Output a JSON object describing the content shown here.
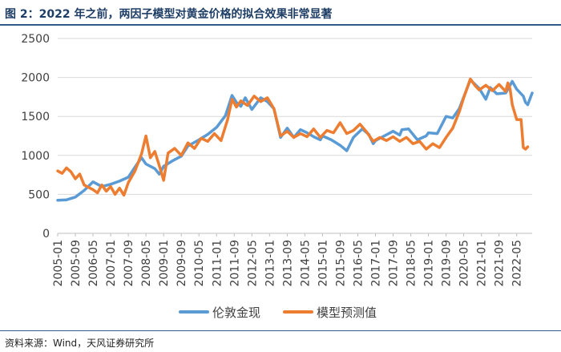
{
  "title": "图 2：2022 年之前，两因子模型对黄金价格的拟合效果非常显著",
  "source": "资料来源：Wind，天风证券研究所",
  "chart_data": {
    "type": "line",
    "title": "",
    "xlabel": "",
    "ylabel": "",
    "ylim": [
      0,
      2500
    ],
    "yticks": [
      0,
      500,
      1000,
      1500,
      2000,
      2500
    ],
    "x_tick_labels": [
      "2005-01",
      "2005-09",
      "2006-05",
      "2007-01",
      "2007-09",
      "2008-05",
      "2009-01",
      "2009-09",
      "2010-05",
      "2011-01",
      "2011-09",
      "2012-05",
      "2013-01",
      "2013-09",
      "2014-05",
      "2015-01",
      "2015-09",
      "2016-05",
      "2017-01",
      "2017-09",
      "2018-05",
      "2019-01",
      "2019-09",
      "2020-05",
      "2021-01",
      "2021-09",
      "2022-05"
    ],
    "grid": "horizontal",
    "legend_position": "bottom",
    "series": [
      {
        "name": "伦敦金现",
        "color": "#5b9bd5",
        "points": [
          [
            "2005-01",
            425
          ],
          [
            "2005-05",
            430
          ],
          [
            "2005-09",
            465
          ],
          [
            "2006-01",
            550
          ],
          [
            "2006-05",
            660
          ],
          [
            "2006-09",
            600
          ],
          [
            "2007-01",
            630
          ],
          [
            "2007-05",
            670
          ],
          [
            "2007-09",
            720
          ],
          [
            "2008-01",
            890
          ],
          [
            "2008-03",
            970
          ],
          [
            "2008-05",
            890
          ],
          [
            "2008-09",
            830
          ],
          [
            "2008-11",
            760
          ],
          [
            "2009-01",
            860
          ],
          [
            "2009-05",
            930
          ],
          [
            "2009-09",
            990
          ],
          [
            "2009-12",
            1120
          ],
          [
            "2010-05",
            1200
          ],
          [
            "2010-09",
            1270
          ],
          [
            "2011-01",
            1360
          ],
          [
            "2011-05",
            1510
          ],
          [
            "2011-08",
            1770
          ],
          [
            "2011-10",
            1680
          ],
          [
            "2011-12",
            1630
          ],
          [
            "2012-02",
            1740
          ],
          [
            "2012-05",
            1590
          ],
          [
            "2012-09",
            1740
          ],
          [
            "2012-12",
            1690
          ],
          [
            "2013-03",
            1600
          ],
          [
            "2013-06",
            1230
          ],
          [
            "2013-09",
            1350
          ],
          [
            "2013-12",
            1230
          ],
          [
            "2014-03",
            1330
          ],
          [
            "2014-06",
            1290
          ],
          [
            "2014-09",
            1240
          ],
          [
            "2014-12",
            1200
          ],
          [
            "2015-01",
            1250
          ],
          [
            "2015-05",
            1200
          ],
          [
            "2015-09",
            1130
          ],
          [
            "2015-12",
            1060
          ],
          [
            "2016-03",
            1230
          ],
          [
            "2016-07",
            1340
          ],
          [
            "2016-10",
            1270
          ],
          [
            "2016-12",
            1150
          ],
          [
            "2017-01",
            1190
          ],
          [
            "2017-05",
            1250
          ],
          [
            "2017-09",
            1310
          ],
          [
            "2017-12",
            1260
          ],
          [
            "2018-01",
            1330
          ],
          [
            "2018-04",
            1340
          ],
          [
            "2018-08",
            1200
          ],
          [
            "2018-12",
            1250
          ],
          [
            "2019-01",
            1290
          ],
          [
            "2019-05",
            1280
          ],
          [
            "2019-09",
            1500
          ],
          [
            "2019-12",
            1480
          ],
          [
            "2020-03",
            1600
          ],
          [
            "2020-08",
            1970
          ],
          [
            "2020-12",
            1860
          ],
          [
            "2021-03",
            1720
          ],
          [
            "2021-05",
            1870
          ],
          [
            "2021-08",
            1790
          ],
          [
            "2021-12",
            1800
          ],
          [
            "2022-03",
            1950
          ],
          [
            "2022-05",
            1850
          ],
          [
            "2022-08",
            1760
          ],
          [
            "2022-09",
            1680
          ],
          [
            "2022-10",
            1650
          ],
          [
            "2022-12",
            1800
          ]
        ]
      },
      {
        "name": "模型预测值",
        "color": "#ed7d31",
        "points": [
          [
            "2005-01",
            800
          ],
          [
            "2005-03",
            770
          ],
          [
            "2005-05",
            840
          ],
          [
            "2005-07",
            790
          ],
          [
            "2005-09",
            700
          ],
          [
            "2005-11",
            760
          ],
          [
            "2006-01",
            620
          ],
          [
            "2006-03",
            590
          ],
          [
            "2006-05",
            560
          ],
          [
            "2006-07",
            520
          ],
          [
            "2006-09",
            620
          ],
          [
            "2006-11",
            540
          ],
          [
            "2007-01",
            600
          ],
          [
            "2007-03",
            500
          ],
          [
            "2007-05",
            580
          ],
          [
            "2007-07",
            490
          ],
          [
            "2007-09",
            650
          ],
          [
            "2007-12",
            800
          ],
          [
            "2008-03",
            1020
          ],
          [
            "2008-05",
            1250
          ],
          [
            "2008-07",
            970
          ],
          [
            "2008-09",
            1050
          ],
          [
            "2008-11",
            870
          ],
          [
            "2009-01",
            680
          ],
          [
            "2009-03",
            1030
          ],
          [
            "2009-06",
            1090
          ],
          [
            "2009-09",
            1000
          ],
          [
            "2009-12",
            1160
          ],
          [
            "2010-03",
            1090
          ],
          [
            "2010-06",
            1220
          ],
          [
            "2010-09",
            1180
          ],
          [
            "2010-12",
            1280
          ],
          [
            "2011-03",
            1190
          ],
          [
            "2011-06",
            1460
          ],
          [
            "2011-08",
            1720
          ],
          [
            "2011-10",
            1620
          ],
          [
            "2011-12",
            1700
          ],
          [
            "2012-03",
            1640
          ],
          [
            "2012-06",
            1760
          ],
          [
            "2012-09",
            1690
          ],
          [
            "2012-12",
            1740
          ],
          [
            "2013-03",
            1600
          ],
          [
            "2013-06",
            1250
          ],
          [
            "2013-09",
            1310
          ],
          [
            "2013-12",
            1230
          ],
          [
            "2014-03",
            1280
          ],
          [
            "2014-06",
            1240
          ],
          [
            "2014-09",
            1340
          ],
          [
            "2014-12",
            1230
          ],
          [
            "2015-03",
            1320
          ],
          [
            "2015-06",
            1290
          ],
          [
            "2015-09",
            1420
          ],
          [
            "2015-12",
            1280
          ],
          [
            "2016-03",
            1320
          ],
          [
            "2016-06",
            1400
          ],
          [
            "2016-09",
            1300
          ],
          [
            "2016-12",
            1180
          ],
          [
            "2017-03",
            1230
          ],
          [
            "2017-06",
            1190
          ],
          [
            "2017-09",
            1240
          ],
          [
            "2017-12",
            1180
          ],
          [
            "2018-03",
            1230
          ],
          [
            "2018-06",
            1150
          ],
          [
            "2018-09",
            1180
          ],
          [
            "2018-12",
            1080
          ],
          [
            "2019-03",
            1150
          ],
          [
            "2019-06",
            1100
          ],
          [
            "2019-09",
            1230
          ],
          [
            "2019-12",
            1350
          ],
          [
            "2020-03",
            1560
          ],
          [
            "2020-05",
            1740
          ],
          [
            "2020-08",
            1980
          ],
          [
            "2020-10",
            1900
          ],
          [
            "2020-12",
            1840
          ],
          [
            "2021-03",
            1900
          ],
          [
            "2021-06",
            1830
          ],
          [
            "2021-09",
            1910
          ],
          [
            "2021-12",
            1820
          ],
          [
            "2022-01",
            1930
          ],
          [
            "2022-02",
            1850
          ],
          [
            "2022-03",
            1650
          ],
          [
            "2022-05",
            1460
          ],
          [
            "2022-07",
            1460
          ],
          [
            "2022-08",
            1100
          ],
          [
            "2022-09",
            1080
          ],
          [
            "2022-10",
            1110
          ]
        ]
      }
    ]
  }
}
